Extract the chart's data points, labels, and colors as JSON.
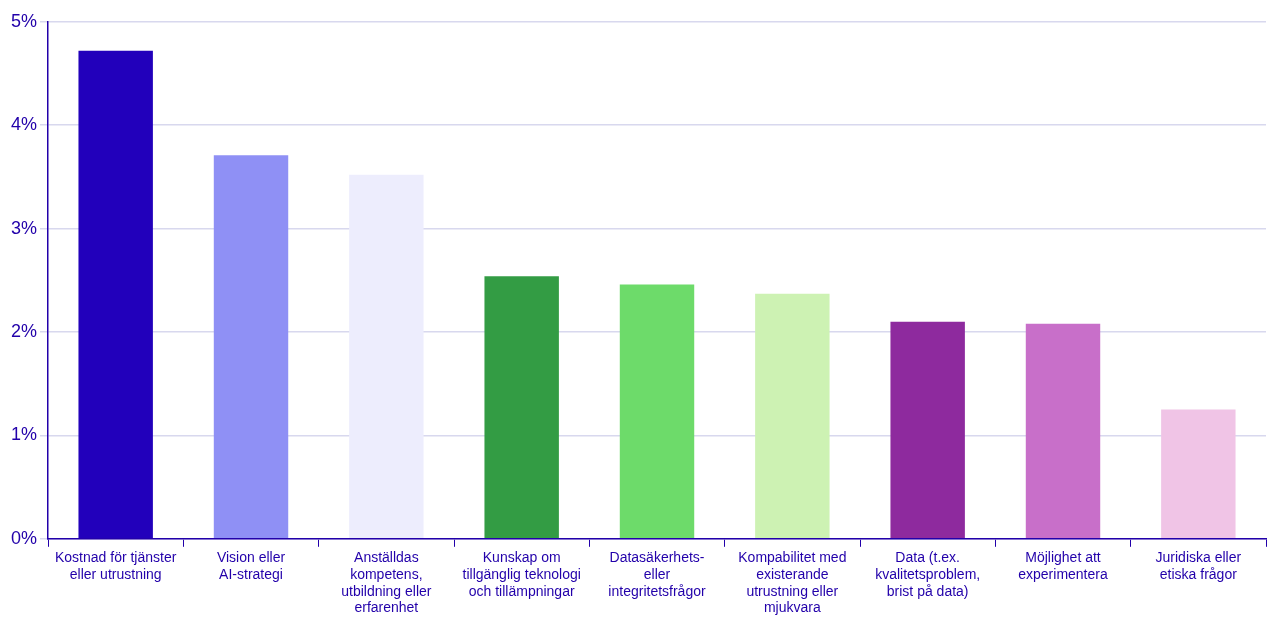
{
  "chart_data": {
    "type": "bar",
    "categories": [
      "Kostnad för tjänster eller utrustning",
      "Vision eller AI-strategi",
      "Anställdas kompetens, utbildning eller erfarenhet",
      "Kunskap om tillgänglig teknologi och tillämpningar",
      "Datasäkerhets- eller integritetsfrågor",
      "Kompabilitet med existerande utrustning eller mjukvara",
      "Data (t.ex. kvalitetsproblem, brist på data)",
      "Möjlighet att experimentera",
      "Juridiska eller etiska frågor"
    ],
    "values": [
      4.72,
      3.71,
      3.52,
      2.54,
      2.46,
      2.37,
      2.1,
      2.08,
      1.25
    ],
    "colors": [
      "#2200bb",
      "#8f90f5",
      "#ededfd",
      "#339c44",
      "#6ddb6a",
      "#cdf2b3",
      "#8e2a9e",
      "#c86fc9",
      "#f0c4e6"
    ],
    "ylim": [
      0,
      5
    ],
    "yticks": [
      {
        "value": 0,
        "label": "0%"
      },
      {
        "value": 1,
        "label": "1%"
      },
      {
        "value": 2,
        "label": "2%"
      },
      {
        "value": 3,
        "label": "3%"
      },
      {
        "value": 4,
        "label": "4%"
      },
      {
        "value": 5,
        "label": "5%"
      }
    ],
    "grid": "y",
    "legend": false
  }
}
